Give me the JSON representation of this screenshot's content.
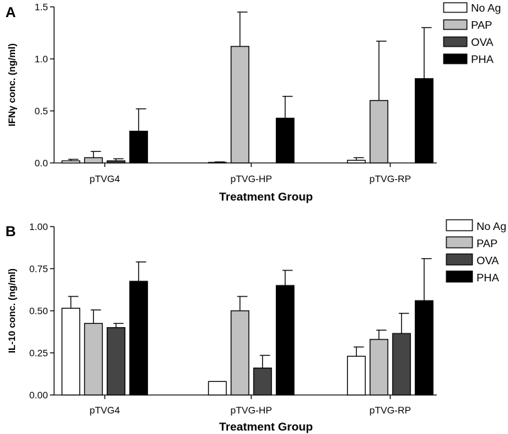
{
  "chart_data": [
    {
      "type": "bar",
      "panel": "A",
      "ylabel": "IFNγ conc. (ng/ml)",
      "xlabel": "Treatment Group",
      "ylim": [
        0,
        1.5
      ],
      "yticks": [
        0.0,
        0.5,
        1.0,
        1.5
      ],
      "ytick_labels": [
        "0.0",
        "0.5",
        "1.0",
        "1.5"
      ],
      "categories": [
        "pTVG4",
        "pTVG-HP",
        "pTVG-RP"
      ],
      "series": [
        {
          "name": "No Ag",
          "color": "#ffffff",
          "values": [
            0.02,
            0.005,
            0.025
          ],
          "errors": [
            0.015,
            0.005,
            0.025
          ]
        },
        {
          "name": "PAP",
          "color": "#c0c0c0",
          "values": [
            0.05,
            1.12,
            0.6
          ],
          "errors": [
            0.06,
            0.33,
            0.57
          ]
        },
        {
          "name": "OVA",
          "color": "#454545",
          "values": [
            0.02,
            0.0,
            0.0
          ],
          "errors": [
            0.02,
            0.0,
            0.0
          ]
        },
        {
          "name": "PHA",
          "color": "#000000",
          "values": [
            0.305,
            0.43,
            0.81
          ],
          "errors": [
            0.215,
            0.21,
            0.49
          ]
        }
      ],
      "legend": "top-right",
      "grid": false
    },
    {
      "type": "bar",
      "panel": "B",
      "ylabel": "IL-10 conc. (ng/ml)",
      "xlabel": "Treatment Group",
      "ylim": [
        0,
        1.0
      ],
      "yticks": [
        0.0,
        0.25,
        0.5,
        0.75,
        1.0
      ],
      "ytick_labels": [
        "0.00",
        "0.25",
        "0.50",
        "0.75",
        "1.00"
      ],
      "categories": [
        "pTVG4",
        "pTVG-HP",
        "pTVG-RP"
      ],
      "series": [
        {
          "name": "No Ag",
          "color": "#ffffff",
          "values": [
            0.515,
            0.08,
            0.23
          ],
          "errors": [
            0.07,
            0.0,
            0.055
          ]
        },
        {
          "name": "PAP",
          "color": "#c0c0c0",
          "values": [
            0.425,
            0.5,
            0.33
          ],
          "errors": [
            0.08,
            0.085,
            0.055
          ]
        },
        {
          "name": "OVA",
          "color": "#454545",
          "values": [
            0.4,
            0.16,
            0.365
          ],
          "errors": [
            0.025,
            0.075,
            0.12
          ]
        },
        {
          "name": "PHA",
          "color": "#000000",
          "values": [
            0.675,
            0.65,
            0.56
          ],
          "errors": [
            0.115,
            0.09,
            0.25
          ]
        }
      ],
      "legend": "top-right",
      "grid": false
    }
  ]
}
